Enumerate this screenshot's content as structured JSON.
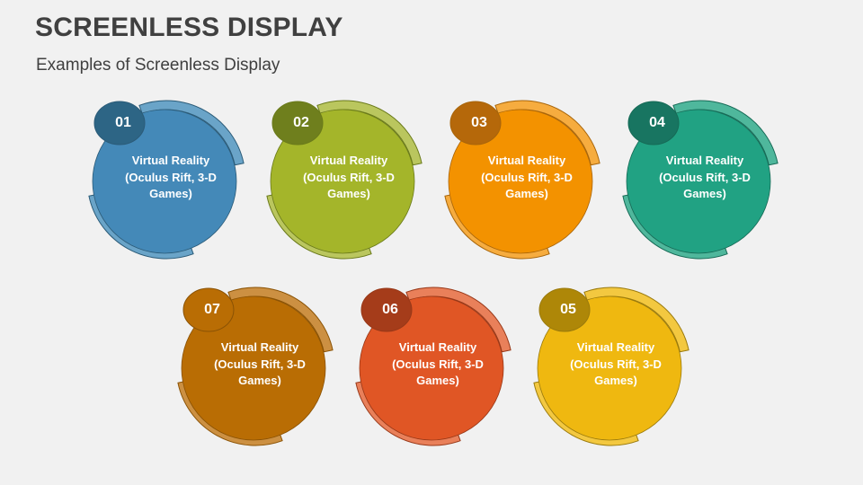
{
  "header": {
    "title": "SCREENLESS DISPLAY",
    "subtitle": "Examples of Screenless Display"
  },
  "items": [
    {
      "number": "01",
      "line1": "Virtual Reality",
      "line2": "(Oculus Rift, 3-D",
      "line3": "Games)",
      "main": "#4489b8",
      "ring": "#6aa4c8",
      "badge": "#2d6585",
      "stroke": "#2b5b78"
    },
    {
      "number": "02",
      "line1": "Virtual Reality",
      "line2": "(Oculus Rift, 3-D",
      "line3": "Games)",
      "main": "#a4b52a",
      "ring": "#bac65e",
      "badge": "#6f7f1d",
      "stroke": "#6a7a1a"
    },
    {
      "number": "03",
      "line1": "Virtual Reality",
      "line2": "(Oculus Rift, 3-D",
      "line3": "Games)",
      "main": "#f39200",
      "ring": "#f6ac3f",
      "badge": "#b5680a",
      "stroke": "#a8650a"
    },
    {
      "number": "04",
      "line1": "Virtual Reality",
      "line2": "(Oculus Rift, 3-D",
      "line3": "Games)",
      "main": "#21a283",
      "ring": "#4fb79c",
      "badge": "#187561",
      "stroke": "#166a56"
    },
    {
      "number": "05",
      "line1": "Virtual Reality",
      "line2": "(Oculus Rift, 3-D",
      "line3": "Games)",
      "main": "#efb810",
      "ring": "#f3c840",
      "badge": "#ae8708",
      "stroke": "#9a7a0c"
    },
    {
      "number": "06",
      "line1": "Virtual Reality",
      "line2": "(Oculus Rift, 3-D",
      "line3": "Games)",
      "main": "#e05625",
      "ring": "#e9805a",
      "badge": "#a53c1a",
      "stroke": "#983818"
    },
    {
      "number": "07",
      "line1": "Virtual Reality",
      "line2": "(Oculus Rift, 3-D",
      "line3": "Games)",
      "main": "#b96d04",
      "ring": "#cc9042",
      "badge": "#b96d04",
      "stroke": "#8a5204"
    }
  ]
}
